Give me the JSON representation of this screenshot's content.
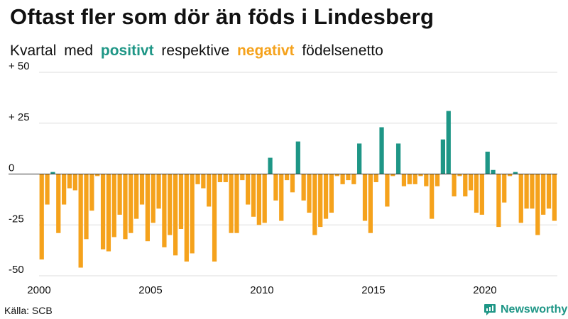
{
  "title": "Oftast fler som dör än föds i Lindesberg",
  "subtitle": {
    "part1": "Kvartal",
    "part2": "med",
    "positive": "positivt",
    "part3": "respektive",
    "negative": "negativt",
    "part4": "födelsenetto"
  },
  "source": "Källa: SCB",
  "brand": "Newsworthy",
  "colors": {
    "positive": "#1e9686",
    "negative": "#f5a21c",
    "grid": "#dddddd",
    "text": "#111111"
  },
  "chart_data": {
    "type": "bar",
    "title": "Oftast fler som dör än föds i Lindesberg",
    "xlabel": "",
    "ylabel": "",
    "ylim": [
      -50,
      50
    ],
    "x_start": 2000.0,
    "x_step": 0.25,
    "x_ticks": [
      2000,
      2005,
      2010,
      2015,
      2020
    ],
    "x_tick_labels": [
      "2000",
      "2005",
      "2010",
      "2015",
      "2020"
    ],
    "y_ticks": [
      50,
      25,
      0,
      -25,
      -50
    ],
    "y_tick_labels": [
      "+ 50",
      "+ 25",
      "0",
      "-25",
      "-50"
    ],
    "series": [
      {
        "name": "Födelsenetto",
        "values": [
          -42,
          -15,
          1,
          -29,
          -15,
          -7,
          -8,
          -46,
          -32,
          -18,
          -1,
          -37,
          -38,
          -31,
          -20,
          -32,
          -29,
          -22,
          -15,
          -33,
          -24,
          -17,
          -36,
          -30,
          -40,
          -27,
          -43,
          -39,
          -5,
          -7,
          -16,
          -43,
          -4,
          -4,
          -29,
          -29,
          -3,
          -15,
          -21,
          -25,
          -24,
          8,
          -13,
          -23,
          -3,
          -9,
          16,
          -13,
          -19,
          -30,
          -26,
          -22,
          -19,
          -1,
          -5,
          -3,
          -5,
          15,
          -23,
          -29,
          -4,
          23,
          -16,
          -1,
          15,
          -6,
          -5,
          -5,
          -1,
          -6,
          -22,
          -6,
          17,
          31,
          -11,
          -1,
          -11,
          -8,
          -19,
          -20,
          11,
          2,
          -26,
          -14,
          -1,
          1,
          -24,
          -17,
          -17,
          -30,
          -20,
          -17,
          -23
        ]
      }
    ]
  }
}
